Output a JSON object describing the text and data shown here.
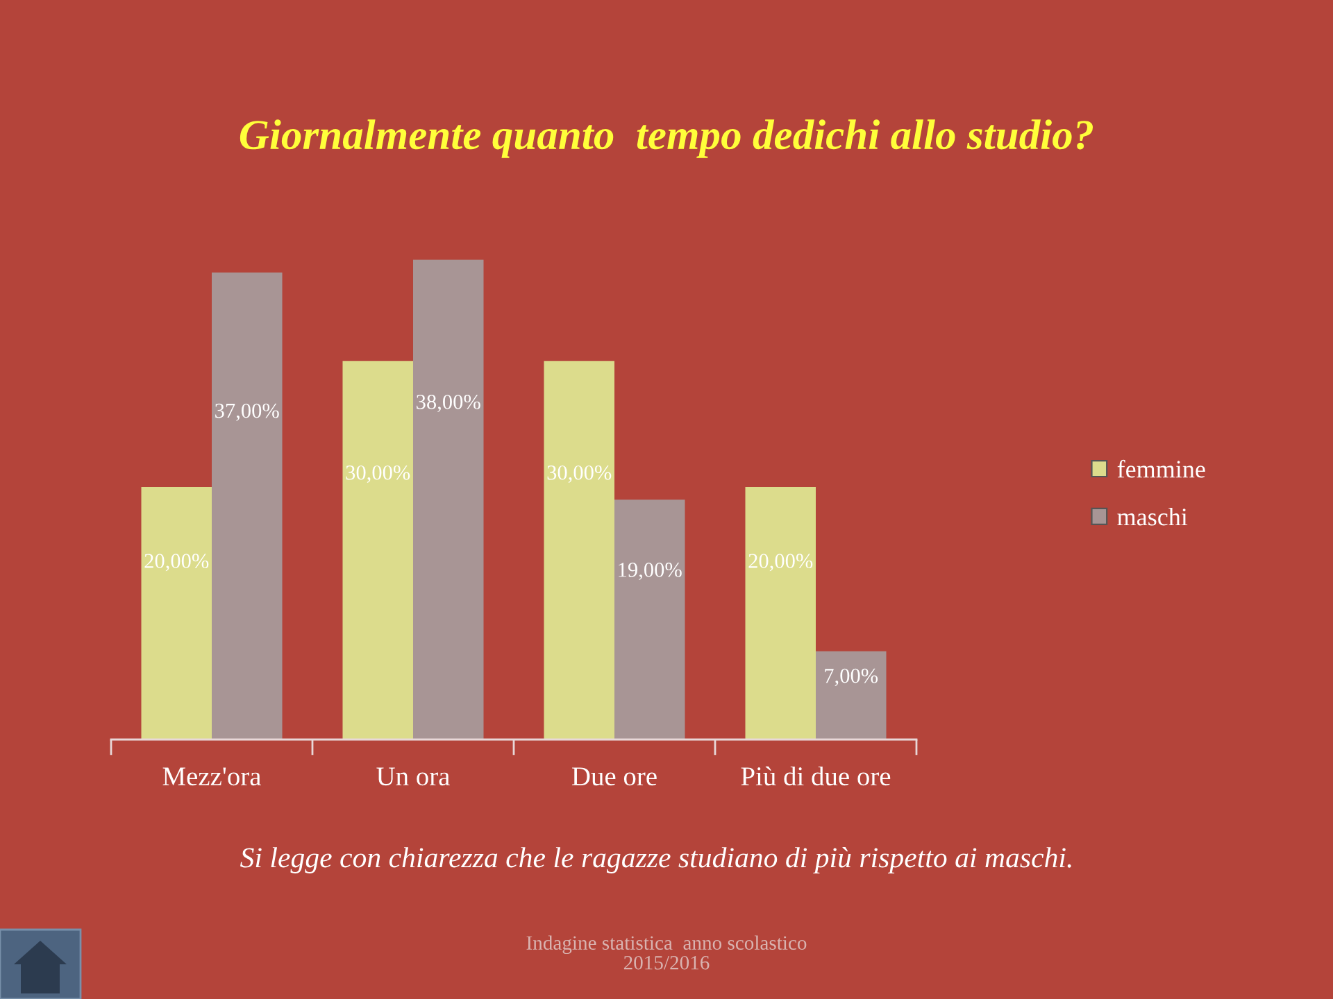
{
  "chart_data": {
    "type": "bar",
    "title": "Giornalmente quanto  tempo dedichi allo studio?",
    "categories": [
      "Mezz'ora",
      "Un ora",
      "Due ore",
      "Più di due ore"
    ],
    "series": [
      {
        "name": "femmine",
        "color": "#dcdc8c",
        "values": [
          20,
          30,
          30,
          20
        ],
        "value_labels": [
          "20,00%",
          "30,00%",
          "30,00%",
          "20,00%"
        ]
      },
      {
        "name": "maschi",
        "color": "#a89595",
        "values": [
          37,
          38,
          19,
          7
        ],
        "value_labels": [
          "37,00%",
          "38,00%",
          "19,00%",
          "7,00%"
        ]
      }
    ],
    "legend": "right",
    "annotations": [
      "Si legge con chiarezza che le ragazze studiano di più rispetto ai maschi.",
      "Indagine statistica  anno scolastico\n2015/2016"
    ]
  }
}
